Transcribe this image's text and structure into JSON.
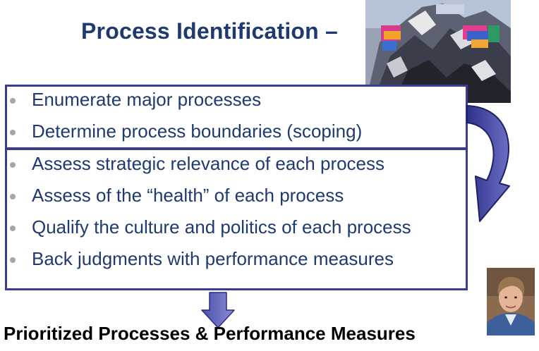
{
  "title": "Process Identification –",
  "group_one": [
    "Enumerate major processes",
    "Determine process boundaries (scoping)"
  ],
  "group_two": [
    "Assess strategic relevance of each process",
    "Assess of the “health” of each process",
    "Qualify the culture and politics of each process",
    "Back judgments with performance measures"
  ],
  "footer": "Prioritized Processes & Performance Measures",
  "colors": {
    "title": "#1f3a6e",
    "box_border": "#3a3b93",
    "arrow": "#3b3d96",
    "bullet": "#a6a6a6"
  }
}
